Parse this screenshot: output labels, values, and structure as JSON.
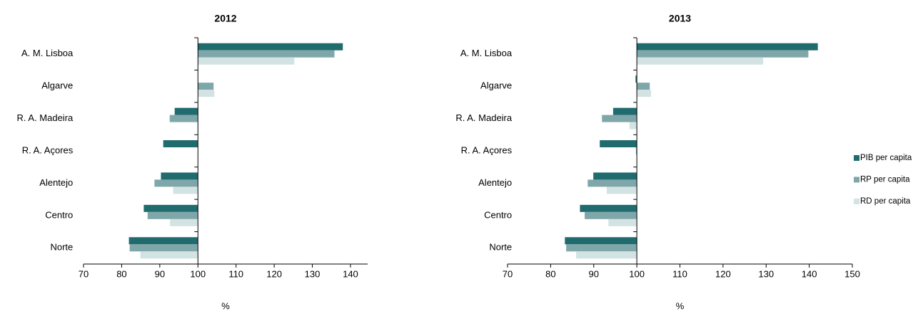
{
  "chart_data": [
    {
      "type": "bar",
      "orientation": "horizontal",
      "title": "2012",
      "xlabel": "%",
      "baseline": 100,
      "categories": [
        "A. M. Lisboa",
        "Algarve",
        "R. A. Madeira",
        "R. A. Açores",
        "Alentejo",
        "Centro",
        "Norte"
      ],
      "series": [
        {
          "name": "PIB per capita",
          "color": "#1f6b6e",
          "values": [
            138.0,
            100.0,
            93.9,
            90.9,
            90.3,
            85.8,
            81.9
          ]
        },
        {
          "name": "RP per capita",
          "color": "#7fa7aa",
          "values": [
            135.8,
            104.1,
            92.6,
            100.0,
            88.6,
            86.8,
            82.1
          ]
        },
        {
          "name": "RD per capita",
          "color": "#d3e3e3",
          "values": [
            125.3,
            104.3,
            99.9,
            100.0,
            93.5,
            92.7,
            84.9
          ]
        }
      ],
      "xlim": [
        70,
        144.5
      ],
      "xticks": [
        70,
        80,
        90,
        100,
        110,
        120,
        130,
        140
      ]
    },
    {
      "type": "bar",
      "orientation": "horizontal",
      "title": "2013",
      "xlabel": "%",
      "baseline": 100,
      "legend": "right",
      "categories": [
        "A. M. Lisboa",
        "Algarve",
        "R. A. Madeira",
        "R. A. Açores",
        "Alentejo",
        "Centro",
        "Norte"
      ],
      "series": [
        {
          "name": "PIB per capita",
          "color": "#1f6b6e",
          "values": [
            142.0,
            99.7,
            94.5,
            91.4,
            89.9,
            86.8,
            83.3
          ]
        },
        {
          "name": "RP per capita",
          "color": "#7fa7aa",
          "values": [
            139.8,
            103.0,
            91.9,
            99.8,
            88.6,
            87.9,
            83.6
          ]
        },
        {
          "name": "RD per capita",
          "color": "#d3e3e3",
          "values": [
            129.3,
            103.3,
            98.3,
            100.0,
            93.0,
            93.4,
            85.9
          ]
        }
      ],
      "xlim": [
        70,
        150
      ],
      "xticks": [
        70,
        80,
        90,
        100,
        110,
        120,
        130,
        140,
        150
      ]
    }
  ]
}
